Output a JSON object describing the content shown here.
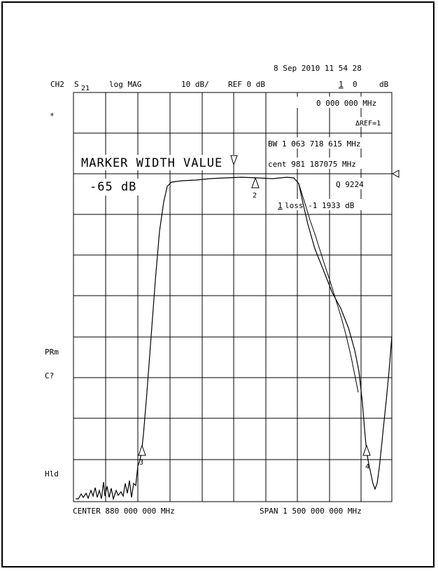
{
  "header": {
    "datetime": "8 Sep 2010  11 54 28",
    "channel": "CH2",
    "param": "S",
    "param_sub": "21",
    "format": "log MAG",
    "scale": "10 dB/",
    "reference": "REF 0 dB",
    "active_marker_num": "1",
    "active_marker_value": "0",
    "active_marker_unit": "dB"
  },
  "readout": {
    "marker_freq": "0 000 000 MHz",
    "ref_mode": "ΔREF=1",
    "bw": "BW  1  063 718 615 MHz",
    "cent": "cent    981 187075 MHz",
    "q": "Q  9224",
    "loss_num": "1",
    "loss": "loss  -1 1933 dB"
  },
  "overlay": {
    "title": "MARKER WIDTH VALUE",
    "value": "-65 dB"
  },
  "side_labels": {
    "star": "*",
    "prm": "PRm",
    "c": "C?",
    "hld": "Hld"
  },
  "footer": {
    "center": "CENTER   880 000 000 MHz",
    "span": "SPAN 1 500 000 000 MHz"
  },
  "markers": [
    {
      "label": "",
      "x_fraction": 0.5
    },
    {
      "label": "2",
      "x_fraction": 0.57
    },
    {
      "label": "3",
      "x_fraction": 0.21
    },
    {
      "label": "4",
      "x_fraction": 0.93
    }
  ]
}
